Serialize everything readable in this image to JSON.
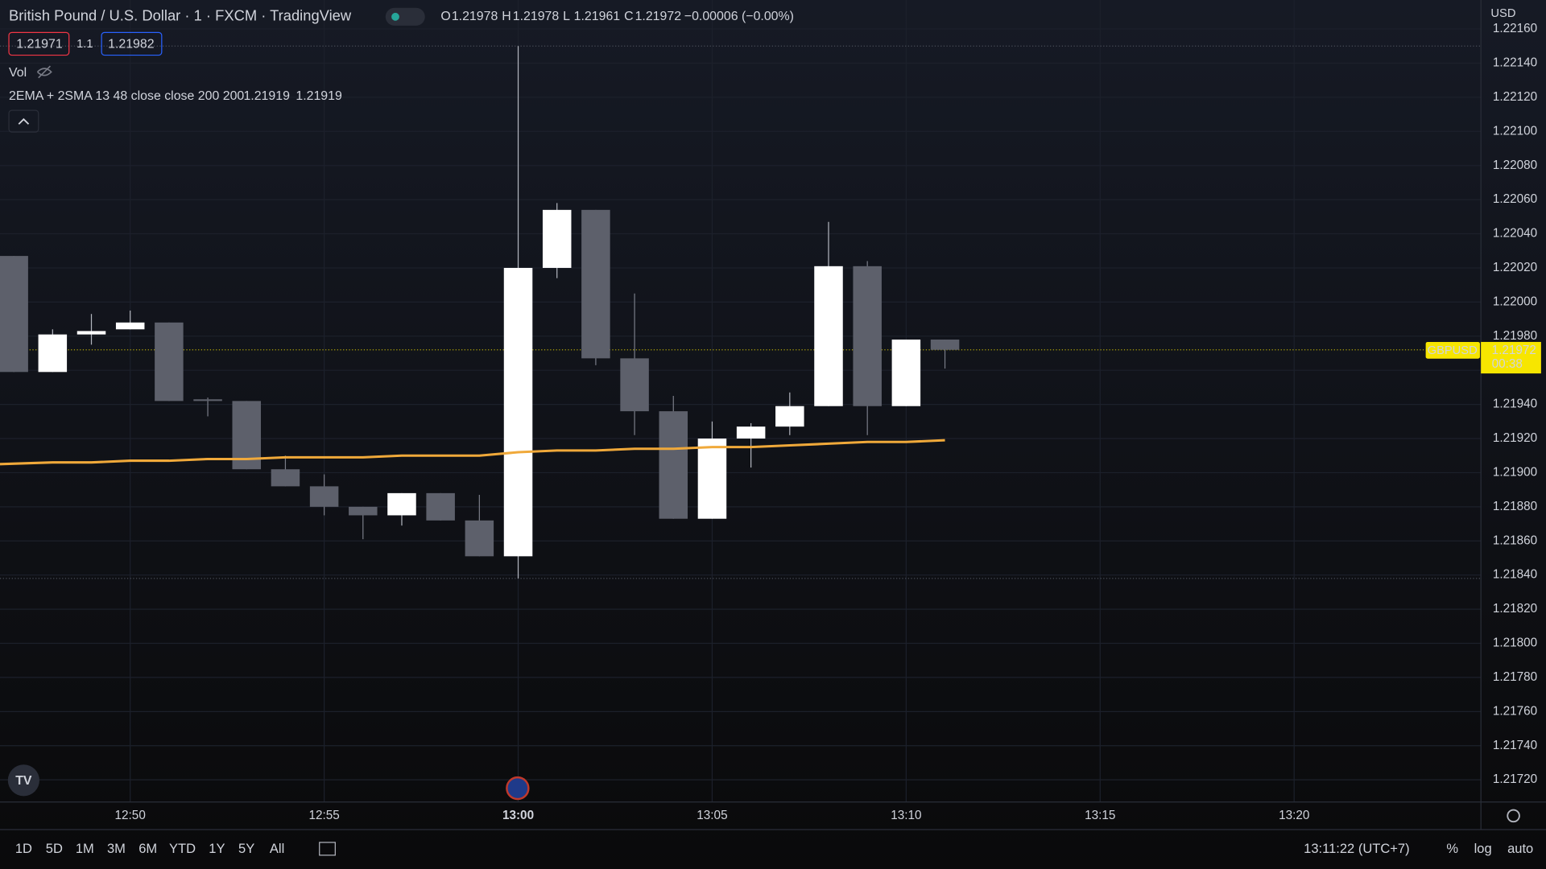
{
  "header": {
    "title": "British Pound / U.S. Dollar · 1 · FXCM · TradingView",
    "ohlc": [
      {
        "label": "O",
        "value": "1.21978"
      },
      {
        "label": "H",
        "value": "1.21978"
      },
      {
        "label": "L",
        "value": "1.21961"
      },
      {
        "label": "C",
        "value": "1.21972"
      }
    ],
    "change": "−0.00006 (−0.00%)"
  },
  "trade": {
    "sell": "1.21971",
    "qty": "1.1",
    "buy": "1.21982"
  },
  "vol": "Vol",
  "indicator": {
    "name": "2EMA + 2SMA 13 48 close close 200 200",
    "values": [
      "1.21919",
      "1.21919"
    ]
  },
  "currency": "USD",
  "price_tag": {
    "symbol": "GBPUSD",
    "price": "1.21972",
    "countdown": "00:38"
  },
  "chart_data": {
    "type": "candlestick",
    "x": [
      "12:47",
      "12:48",
      "12:49",
      "12:50",
      "12:51",
      "12:52",
      "12:53",
      "12:54",
      "12:55",
      "12:56",
      "12:57",
      "12:58",
      "12:59",
      "13:00",
      "13:01",
      "13:02",
      "13:03",
      "13:04",
      "13:05",
      "13:06",
      "13:07",
      "13:08",
      "13:09",
      "13:10",
      "13:11"
    ],
    "open": [
      1.22027,
      1.21959,
      1.21981,
      1.21984,
      1.21988,
      1.21943,
      1.21942,
      1.21902,
      1.21892,
      1.2188,
      1.21875,
      1.21888,
      1.21872,
      1.21851,
      1.2202,
      1.22054,
      1.21967,
      1.21936,
      1.21873,
      1.2192,
      1.21927,
      1.21939,
      1.22021,
      1.21939,
      1.21978
    ],
    "high": [
      1.22027,
      1.21984,
      1.21993,
      1.21995,
      1.21988,
      1.21944,
      1.21942,
      1.2191,
      1.21899,
      1.2188,
      1.21888,
      1.21888,
      1.21887,
      1.2215,
      1.22058,
      1.22054,
      1.22005,
      1.21945,
      1.2193,
      1.21929,
      1.21947,
      1.22047,
      1.22024,
      1.21978,
      1.21978
    ],
    "low": [
      1.21959,
      1.21959,
      1.21975,
      1.21984,
      1.21942,
      1.21933,
      1.21902,
      1.21892,
      1.21875,
      1.21861,
      1.21869,
      1.21872,
      1.21851,
      1.21838,
      1.22014,
      1.21963,
      1.21922,
      1.21873,
      1.21873,
      1.21903,
      1.21922,
      1.21939,
      1.21922,
      1.21939,
      1.21961
    ],
    "close": [
      1.21959,
      1.21981,
      1.21983,
      1.21988,
      1.21942,
      1.21942,
      1.21902,
      1.21892,
      1.2188,
      1.21875,
      1.21888,
      1.21872,
      1.21851,
      1.2202,
      1.22054,
      1.21967,
      1.21936,
      1.21873,
      1.2192,
      1.21927,
      1.21939,
      1.22021,
      1.21939,
      1.21978,
      1.21972
    ],
    "up_color": "#ffffff",
    "down_color": "#5d606b",
    "ema_color": "#f0a93a",
    "ema_values": [
      1.21905,
      1.21906,
      1.21906,
      1.21907,
      1.21907,
      1.21908,
      1.21908,
      1.21909,
      1.21909,
      1.21909,
      1.2191,
      1.2191,
      1.2191,
      1.21912,
      1.21913,
      1.21913,
      1.21914,
      1.21914,
      1.21915,
      1.21915,
      1.21916,
      1.21917,
      1.21918,
      1.21918,
      1.21919
    ],
    "ylim": [
      1.21707,
      1.22177
    ],
    "yticks": [
      {
        "value": 1.2172,
        "label": "1.21720"
      },
      {
        "value": 1.2174,
        "label": "1.21740"
      },
      {
        "value": 1.2176,
        "label": "1.21760"
      },
      {
        "value": 1.2178,
        "label": "1.21780"
      },
      {
        "value": 1.218,
        "label": "1.21800"
      },
      {
        "value": 1.2182,
        "label": "1.21820"
      },
      {
        "value": 1.2184,
        "label": "1.21840"
      },
      {
        "value": 1.2186,
        "label": "1.21860"
      },
      {
        "value": 1.2188,
        "label": "1.21880"
      },
      {
        "value": 1.219,
        "label": "1.21900"
      },
      {
        "value": 1.2192,
        "label": "1.21920"
      },
      {
        "value": 1.2194,
        "label": "1.21940"
      },
      {
        "value": 1.2196,
        "label": "1.21960"
      },
      {
        "value": 1.2198,
        "label": "1.21980"
      },
      {
        "value": 1.22,
        "label": "1.22000"
      },
      {
        "value": 1.2202,
        "label": "1.22020"
      },
      {
        "value": 1.2204,
        "label": "1.22040"
      },
      {
        "value": 1.2206,
        "label": "1.22060"
      },
      {
        "value": 1.2208,
        "label": "1.22080"
      },
      {
        "value": 1.221,
        "label": "1.22100"
      },
      {
        "value": 1.2212,
        "label": "1.22120"
      },
      {
        "value": 1.2214,
        "label": "1.22140"
      },
      {
        "value": 1.2216,
        "label": "1.22160"
      }
    ],
    "xticks": [
      "12:50",
      "12:55",
      "13:00",
      "13:05",
      "13:10",
      "13:15",
      "13:20"
    ],
    "grid": true
  },
  "toolbar": {
    "ranges": [
      "1D",
      "5D",
      "1M",
      "3M",
      "6M",
      "YTD",
      "1Y",
      "5Y",
      "All"
    ],
    "clock": "13:11:22 (UTC+7)",
    "options": [
      "%",
      "log",
      "auto"
    ]
  }
}
